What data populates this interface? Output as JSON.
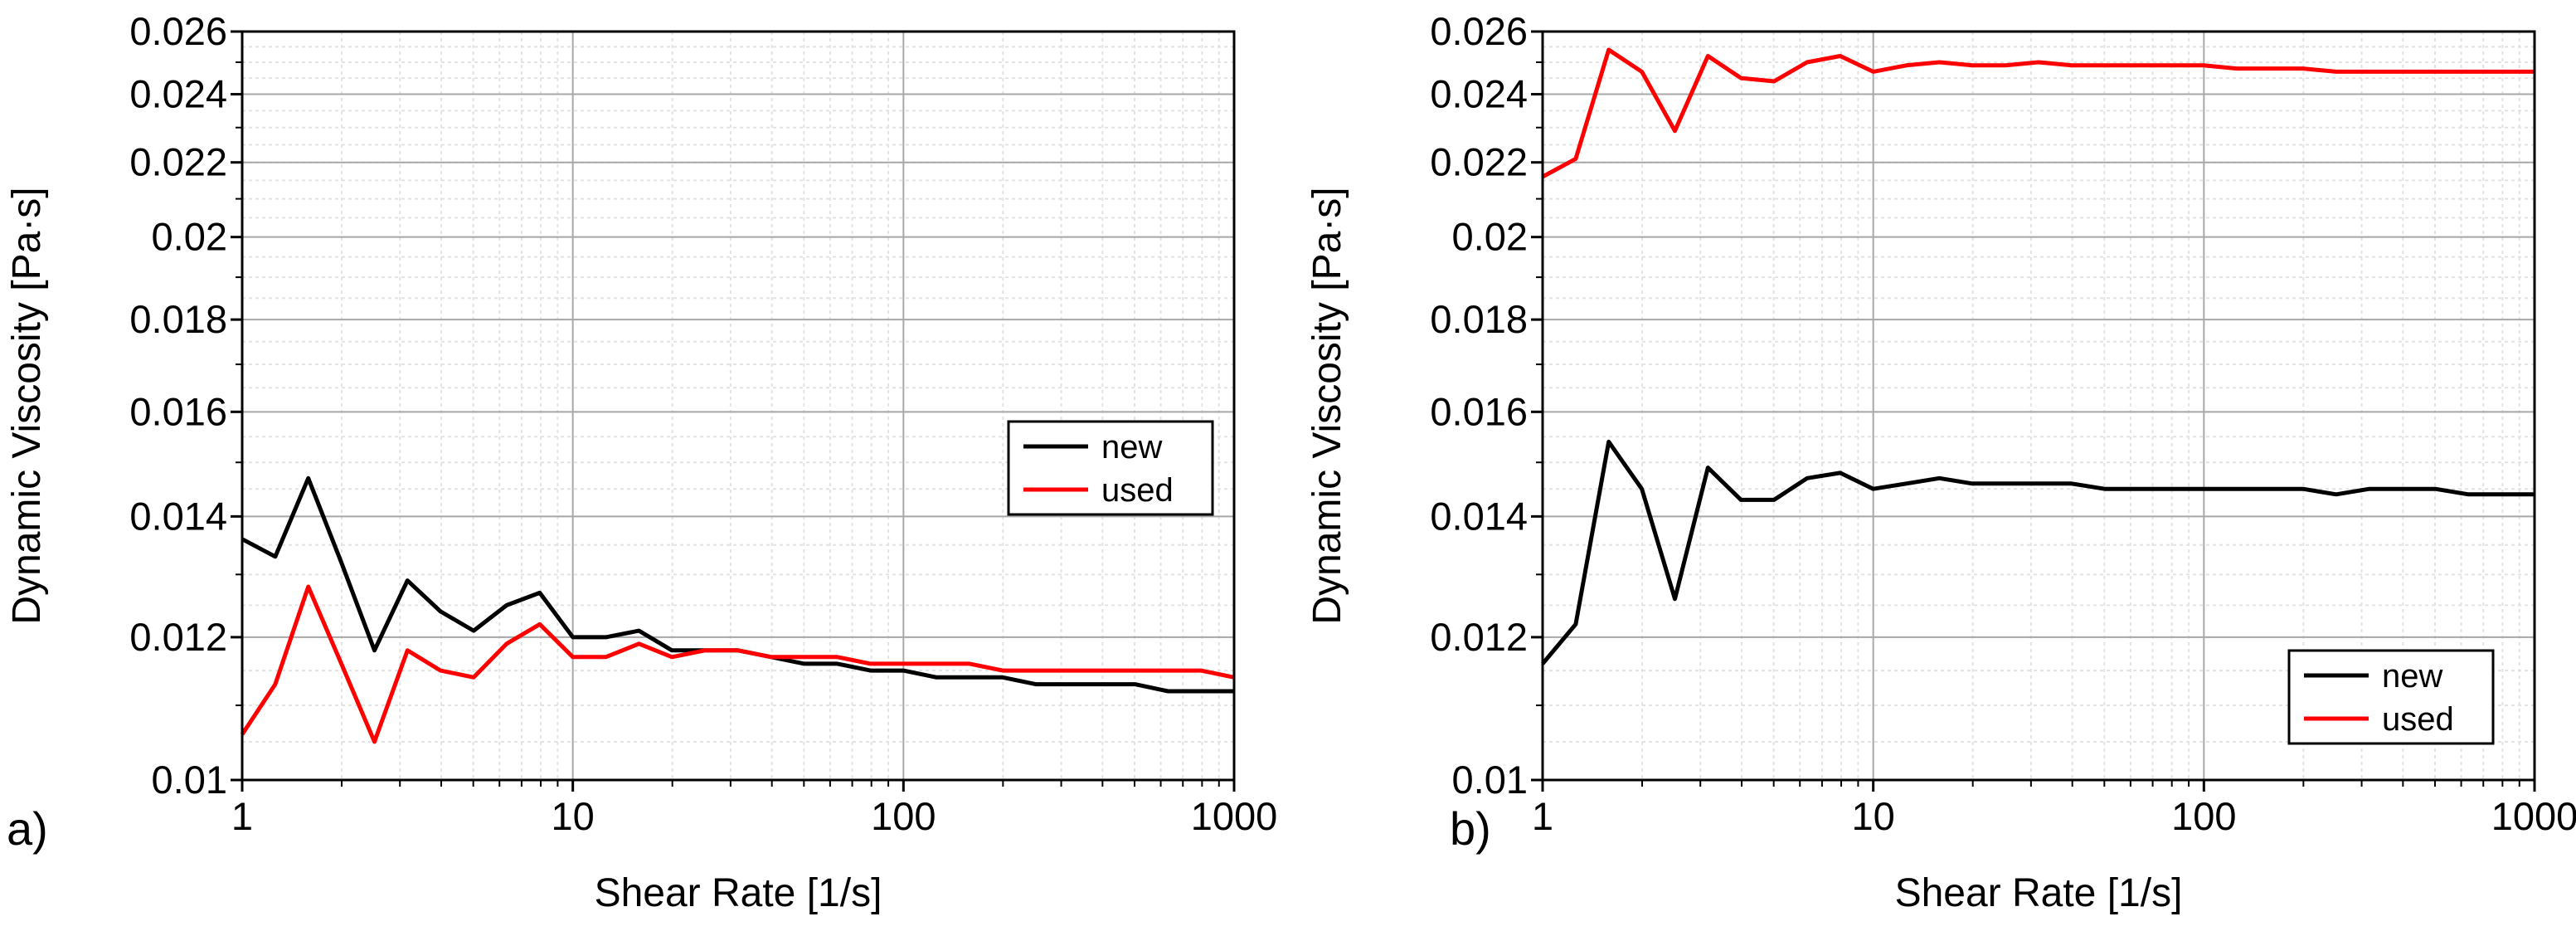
{
  "chart_data": [
    {
      "type": "line",
      "panel_label": "a)",
      "xlabel": "Shear Rate [1/s]",
      "ylabel": "Dynamic Viscosity [Pa·s]",
      "xscale": "log",
      "yscale": "log",
      "xlim": [
        1,
        1000
      ],
      "ylim": [
        0.01,
        0.026
      ],
      "grid": true,
      "legend_position": "right",
      "x_ticks": [
        {
          "value": 1,
          "label": "1"
        },
        {
          "value": 10,
          "label": "10"
        },
        {
          "value": 100,
          "label": "100"
        },
        {
          "value": 1000,
          "label": "1000"
        }
      ],
      "y_ticks": [
        {
          "value": 0.01,
          "label": "0.01"
        },
        {
          "value": 0.012,
          "label": "0.012"
        },
        {
          "value": 0.014,
          "label": "0.014"
        },
        {
          "value": 0.016,
          "label": "0.016"
        },
        {
          "value": 0.018,
          "label": "0.018"
        },
        {
          "value": 0.02,
          "label": "0.02"
        },
        {
          "value": 0.022,
          "label": "0.022"
        },
        {
          "value": 0.024,
          "label": "0.024"
        },
        {
          "value": 0.026,
          "label": "0.026"
        }
      ],
      "x": [
        1,
        1.259,
        1.585,
        1.995,
        2.512,
        3.162,
        3.981,
        5.012,
        6.31,
        7.943,
        10,
        12.59,
        15.85,
        19.95,
        25.12,
        31.62,
        39.81,
        50.12,
        63.1,
        79.43,
        100,
        125.9,
        158.5,
        199.5,
        251.2,
        316.2,
        398.1,
        501.2,
        631,
        794.3,
        1000
      ],
      "series": [
        {
          "name": "new",
          "color": "#000000",
          "values": [
            0.0136,
            0.0133,
            0.0147,
            0.0132,
            0.0118,
            0.0129,
            0.0124,
            0.0121,
            0.0125,
            0.0127,
            0.012,
            0.012,
            0.0121,
            0.0118,
            0.0118,
            0.0118,
            0.0117,
            0.0116,
            0.0116,
            0.0115,
            0.0115,
            0.0114,
            0.0114,
            0.0114,
            0.0113,
            0.0113,
            0.0113,
            0.0113,
            0.0112,
            0.0112,
            0.0112
          ]
        },
        {
          "name": "used",
          "color": "#ff0000",
          "values": [
            0.0106,
            0.0113,
            0.0128,
            0.0116,
            0.0105,
            0.0118,
            0.0115,
            0.0114,
            0.0119,
            0.0122,
            0.0117,
            0.0117,
            0.0119,
            0.0117,
            0.0118,
            0.0118,
            0.0117,
            0.0117,
            0.0117,
            0.0116,
            0.0116,
            0.0116,
            0.0116,
            0.0115,
            0.0115,
            0.0115,
            0.0115,
            0.0115,
            0.0115,
            0.0115,
            0.0114
          ]
        }
      ]
    },
    {
      "type": "line",
      "panel_label": "b)",
      "xlabel": "Shear Rate [1/s]",
      "ylabel": "Dynamic Viscosity [Pa·s]",
      "xscale": "log",
      "yscale": "log",
      "xlim": [
        1,
        1000
      ],
      "ylim": [
        0.01,
        0.026
      ],
      "grid": true,
      "legend_position": "bottom-right",
      "x_ticks": [
        {
          "value": 1,
          "label": "1"
        },
        {
          "value": 10,
          "label": "10"
        },
        {
          "value": 100,
          "label": "100"
        },
        {
          "value": 1000,
          "label": "1000"
        }
      ],
      "y_ticks": [
        {
          "value": 0.01,
          "label": "0.01"
        },
        {
          "value": 0.012,
          "label": "0.012"
        },
        {
          "value": 0.014,
          "label": "0.014"
        },
        {
          "value": 0.016,
          "label": "0.016"
        },
        {
          "value": 0.018,
          "label": "0.018"
        },
        {
          "value": 0.02,
          "label": "0.02"
        },
        {
          "value": 0.022,
          "label": "0.022"
        },
        {
          "value": 0.024,
          "label": "0.024"
        },
        {
          "value": 0.026,
          "label": "0.026"
        }
      ],
      "x": [
        1,
        1.259,
        1.585,
        1.995,
        2.512,
        3.162,
        3.981,
        5.012,
        6.31,
        7.943,
        10,
        12.59,
        15.85,
        19.95,
        25.12,
        31.62,
        39.81,
        50.12,
        63.1,
        79.43,
        100,
        125.9,
        158.5,
        199.5,
        251.2,
        316.2,
        398.1,
        501.2,
        631,
        794.3,
        1000
      ],
      "series": [
        {
          "name": "new",
          "color": "#000000",
          "values": [
            0.0116,
            0.0122,
            0.0154,
            0.0145,
            0.0126,
            0.0149,
            0.0143,
            0.0143,
            0.0147,
            0.0148,
            0.0145,
            0.0146,
            0.0147,
            0.0146,
            0.0146,
            0.0146,
            0.0146,
            0.0145,
            0.0145,
            0.0145,
            0.0145,
            0.0145,
            0.0145,
            0.0145,
            0.0144,
            0.0145,
            0.0145,
            0.0145,
            0.0144,
            0.0144,
            0.0144
          ]
        },
        {
          "name": "used",
          "color": "#ff0000",
          "values": [
            0.0216,
            0.0221,
            0.0254,
            0.0247,
            0.0229,
            0.0252,
            0.0245,
            0.0244,
            0.025,
            0.0252,
            0.0247,
            0.0249,
            0.025,
            0.0249,
            0.0249,
            0.025,
            0.0249,
            0.0249,
            0.0249,
            0.0249,
            0.0249,
            0.0248,
            0.0248,
            0.0248,
            0.0247,
            0.0247,
            0.0247,
            0.0247,
            0.0247,
            0.0247,
            0.0247
          ]
        }
      ]
    }
  ]
}
